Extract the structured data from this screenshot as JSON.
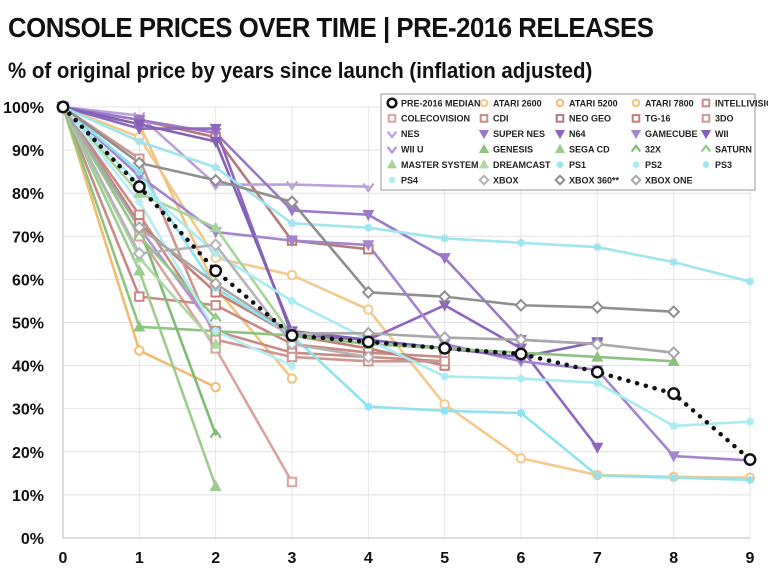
{
  "chart_data": {
    "type": "line",
    "title": "CONSOLE PRICES OVER TIME  |  PRE-2016 RELEASES",
    "subtitle": "% of original price by years since launch (inflation adjusted)",
    "xlabel": "",
    "ylabel": "",
    "x_ticks": [
      0,
      1,
      2,
      3,
      4,
      5,
      6,
      7,
      8,
      9
    ],
    "y_ticks": [
      "0%",
      "10%",
      "20%",
      "30%",
      "40%",
      "50%",
      "60%",
      "70%",
      "80%",
      "90%",
      "100%"
    ],
    "xlim": [
      0,
      9
    ],
    "ylim": [
      0,
      100
    ],
    "grid": true,
    "legend_position": "top-right",
    "series": [
      {
        "name": "PRE-2016 MEDIAN",
        "color": "#111111",
        "marker": "circle",
        "dotted": true,
        "x": [
          0,
          1,
          2,
          3,
          4,
          5,
          6,
          7,
          8,
          9
        ],
        "y": [
          100,
          81.5,
          62,
          47,
          45.5,
          44,
          42.7,
          38.5,
          33.5,
          18.2
        ]
      },
      {
        "name": "ATARI 2600",
        "color": "#f4c98c",
        "marker": "circle-open",
        "x": [
          0,
          1,
          2,
          3,
          4,
          5,
          6,
          7,
          8,
          9
        ],
        "y": [
          100,
          93,
          65,
          61,
          53,
          31,
          18.5,
          14.6,
          14.2,
          14
        ]
      },
      {
        "name": "ATARI 5200",
        "color": "#f0bc72",
        "marker": "circle-open",
        "x": [
          0,
          1,
          2
        ],
        "y": [
          100,
          43.5,
          35
        ]
      },
      {
        "name": "ATARI 7800",
        "color": "#f2c47e",
        "marker": "circle-open",
        "x": [
          0,
          1,
          2,
          3
        ],
        "y": [
          100,
          96,
          58,
          37
        ]
      },
      {
        "name": "INTELLIVISION",
        "color": "#c98b87",
        "marker": "square-open",
        "x": [
          0,
          1,
          2,
          3,
          4,
          5
        ],
        "y": [
          100,
          75,
          48,
          43,
          42,
          41
        ]
      },
      {
        "name": "COLECOVISION",
        "color": "#d9a3a0",
        "marker": "square-open",
        "x": [
          0,
          1,
          2,
          3
        ],
        "y": [
          100,
          70,
          44,
          13
        ]
      },
      {
        "name": "CDI",
        "color": "#c88a86",
        "marker": "square-open",
        "x": [
          0,
          1,
          2,
          3,
          4,
          5
        ],
        "y": [
          100,
          56,
          54,
          45,
          43,
          42
        ]
      },
      {
        "name": "NEO GEO",
        "color": "#b57a77",
        "marker": "square-open",
        "x": [
          0,
          1,
          2,
          3,
          4
        ],
        "y": [
          100,
          97,
          93,
          69,
          67
        ]
      },
      {
        "name": "TG-16",
        "color": "#c47e79",
        "marker": "square-open",
        "x": [
          0,
          1,
          2,
          3,
          4,
          5
        ],
        "y": [
          100,
          73,
          57,
          47,
          44,
          40
        ]
      },
      {
        "name": "3DO",
        "color": "#cf9691",
        "marker": "square-open",
        "x": [
          0,
          1,
          2,
          3,
          4,
          5
        ],
        "y": [
          100,
          88,
          46,
          42,
          41,
          41
        ]
      },
      {
        "name": "NES",
        "color": "#b9a1d9",
        "marker": "chevron-down",
        "x": [
          0,
          1,
          2,
          3,
          4
        ],
        "y": [
          100,
          98,
          82,
          82,
          81.5
        ]
      },
      {
        "name": "SUPER NES",
        "color": "#9b78c8",
        "marker": "triangle-down",
        "x": [
          0,
          1,
          2,
          3,
          4,
          5,
          6,
          7
        ],
        "y": [
          100,
          97,
          94,
          76,
          75,
          65,
          46,
          45
        ]
      },
      {
        "name": "N64",
        "color": "#8e66bf",
        "marker": "triangle-down",
        "x": [
          0,
          1,
          2,
          3,
          4,
          5,
          6,
          7
        ],
        "y": [
          100,
          95,
          95,
          47,
          46,
          54,
          44,
          21
        ]
      },
      {
        "name": "GAMECUBE",
        "color": "#a385cf",
        "marker": "triangle-down",
        "x": [
          0,
          1,
          2,
          3,
          4,
          5,
          6,
          7,
          8,
          9
        ],
        "y": [
          100,
          84,
          71,
          69,
          68,
          45,
          41,
          39,
          19,
          18
        ]
      },
      {
        "name": "WII",
        "color": "#8461b8",
        "marker": "triangle-down",
        "x": [
          0,
          1,
          2,
          3,
          4,
          5,
          6,
          7
        ],
        "y": [
          100,
          96,
          92,
          48,
          46,
          44,
          42,
          45.5
        ]
      },
      {
        "name": "WII U",
        "color": "#b393dc",
        "marker": "chevron-down",
        "x": [
          0,
          1,
          2
        ],
        "y": [
          100,
          72,
          48
        ]
      },
      {
        "name": "GENESIS",
        "color": "#8cc47f",
        "marker": "triangle-up",
        "x": [
          0,
          1,
          2,
          3,
          4,
          5,
          6,
          7,
          8
        ],
        "y": [
          100,
          49,
          48,
          47,
          45,
          44,
          43,
          42,
          41
        ]
      },
      {
        "name": "SEGA CD",
        "color": "#9ccd8f",
        "marker": "triangle-up",
        "x": [
          0,
          1,
          2
        ],
        "y": [
          100,
          62,
          12
        ]
      },
      {
        "name": "32X",
        "color": "#7fbb73",
        "marker": "chevron-up",
        "x": [
          0,
          1,
          2
        ],
        "y": [
          100,
          72,
          24
        ]
      },
      {
        "name": "SATURN",
        "color": "#92c886",
        "marker": "chevron-up",
        "x": [
          0,
          1,
          2
        ],
        "y": [
          100,
          70,
          51
        ]
      },
      {
        "name": "MASTER SYSTEM",
        "color": "#a6d49a",
        "marker": "triangle-up",
        "x": [
          0,
          1,
          2,
          3
        ],
        "y": [
          100,
          80,
          72,
          47
        ]
      },
      {
        "name": "DREAMCAST",
        "color": "#b0d8a4",
        "marker": "triangle-up",
        "x": [
          0,
          1,
          2
        ],
        "y": [
          100,
          65,
          45
        ]
      },
      {
        "name": "PS1",
        "color": "#8fe3ee",
        "marker": "star",
        "x": [
          0,
          1,
          2,
          3,
          4,
          5,
          6,
          7,
          8,
          9
        ],
        "y": [
          100,
          85,
          58,
          47,
          30.5,
          29.5,
          29,
          14.5,
          14,
          13.5
        ]
      },
      {
        "name": "PS2",
        "color": "#a7ebf3",
        "marker": "star",
        "x": [
          0,
          1,
          2,
          3,
          4,
          5,
          6,
          7,
          8,
          9
        ],
        "y": [
          100,
          82,
          66,
          55,
          46,
          37.5,
          37,
          36,
          26,
          27
        ]
      },
      {
        "name": "PS3",
        "color": "#9fe5ee",
        "marker": "star",
        "x": [
          0,
          1,
          2,
          3,
          4,
          5,
          6,
          7,
          8,
          9
        ],
        "y": [
          100,
          92,
          86,
          73,
          72,
          69.5,
          68.5,
          67.5,
          64,
          59.5
        ]
      },
      {
        "name": "PS4",
        "color": "#b6eef5",
        "marker": "star",
        "x": [
          0,
          1,
          2,
          3
        ],
        "y": [
          100,
          78,
          48,
          40
        ]
      },
      {
        "name": "XBOX",
        "color": "#b4b4b4",
        "marker": "diamond",
        "x": [
          0,
          1,
          2,
          3,
          4
        ],
        "y": [
          100,
          66,
          68,
          45,
          42
        ]
      },
      {
        "name": "XBOX 360**",
        "color": "#8f8f8f",
        "marker": "diamond",
        "x": [
          0,
          1,
          2,
          3,
          4,
          5,
          6,
          7,
          8
        ],
        "y": [
          100,
          87,
          83,
          78,
          57,
          56,
          54,
          53.5,
          52.5
        ]
      },
      {
        "name": "XBOX ONE",
        "color": "#a8a8a8",
        "marker": "diamond",
        "x": [
          0,
          1,
          2,
          3,
          4,
          5,
          6,
          7,
          8
        ],
        "y": [
          100,
          72,
          59,
          47.5,
          47.5,
          46.5,
          46,
          45,
          43
        ]
      }
    ]
  }
}
